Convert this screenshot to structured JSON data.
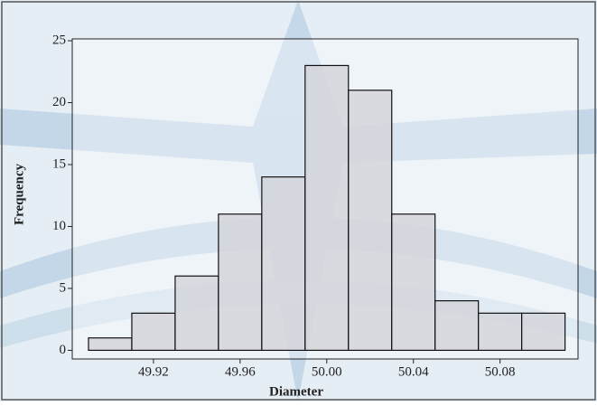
{
  "chart_data": {
    "type": "histogram",
    "x_label": "Diameter",
    "y_label": "Frequency",
    "bins": [
      49.89,
      49.91,
      49.93,
      49.95,
      49.97,
      49.99,
      50.01,
      50.03,
      50.05,
      50.07,
      50.09,
      50.11
    ],
    "values": [
      1,
      3,
      6,
      11,
      14,
      23,
      21,
      11,
      4,
      3,
      3
    ],
    "color": "#d3d5da",
    "xlim": [
      49.8825,
      50.116
    ],
    "xticks": [
      49.92,
      49.96,
      {
        "value": 50,
        "label": "50.00"
      },
      50.04,
      50.08
    ],
    "ylim": [
      -0.7,
      25.15
    ],
    "yticks": [
      0,
      5,
      10,
      15,
      20,
      25
    ]
  }
}
